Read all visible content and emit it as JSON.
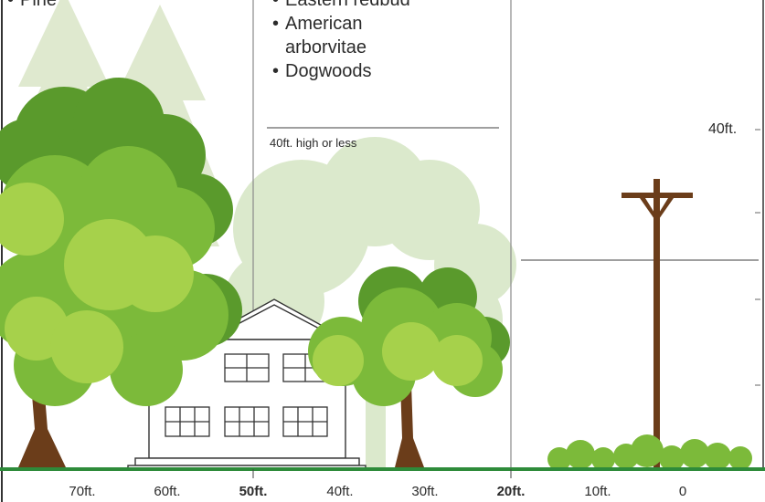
{
  "zones": {
    "left_list": [
      "Pine"
    ],
    "middle_list": [
      "Eastern redbud",
      "American\narborvitae",
      "Dogwoods"
    ]
  },
  "labels": {
    "middle_limit": "40ft. high or less",
    "height_40": "40ft."
  },
  "distance_axis": [
    {
      "label": "70ft.",
      "bold": false
    },
    {
      "label": "60ft.",
      "bold": false
    },
    {
      "label": "50ft.",
      "bold": true
    },
    {
      "label": "40ft.",
      "bold": false
    },
    {
      "label": "30ft.",
      "bold": false
    },
    {
      "label": "20ft.",
      "bold": true
    },
    {
      "label": "10ft.",
      "bold": false
    },
    {
      "label": "0",
      "bold": false
    }
  ],
  "colors": {
    "tree_dark": "#5a9a2c",
    "tree_mid": "#7cba3a",
    "tree_light": "#a6d14b",
    "tree_pale": "#d6e7c2",
    "trunk": "#6b3d1a",
    "ground": "#2e8b3a",
    "divider": "#8a8a8a",
    "house_line": "#333333"
  }
}
